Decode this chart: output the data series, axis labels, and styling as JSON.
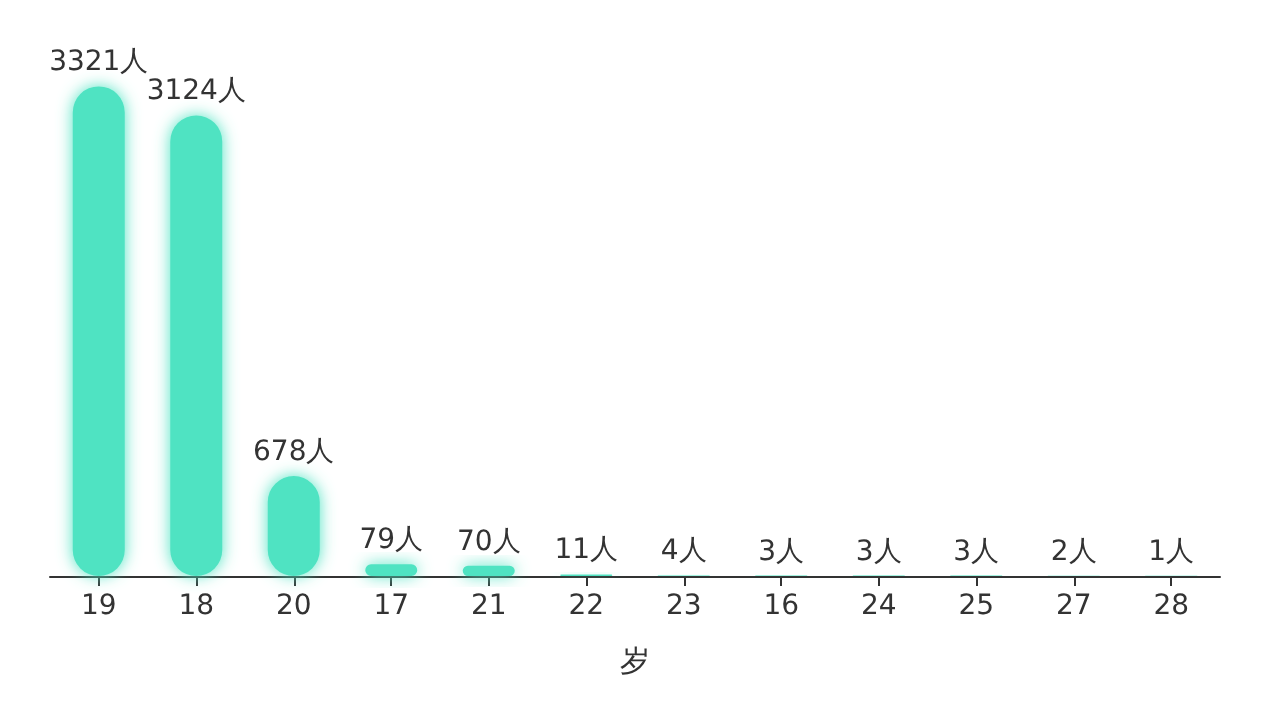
{
  "chart_data": {
    "type": "bar",
    "xlabel": "岁",
    "categories": [
      "19",
      "18",
      "20",
      "17",
      "21",
      "22",
      "23",
      "16",
      "24",
      "25",
      "27",
      "28"
    ],
    "values": [
      3321,
      3124,
      678,
      79,
      70,
      11,
      4,
      3,
      3,
      3,
      2,
      1
    ],
    "value_labels": [
      "3321人",
      "3124人",
      "678人",
      "79人",
      "70人",
      "11人",
      "4人",
      "3人",
      "3人",
      "3人",
      "2人",
      "1人"
    ],
    "color": "#50e3c2"
  }
}
